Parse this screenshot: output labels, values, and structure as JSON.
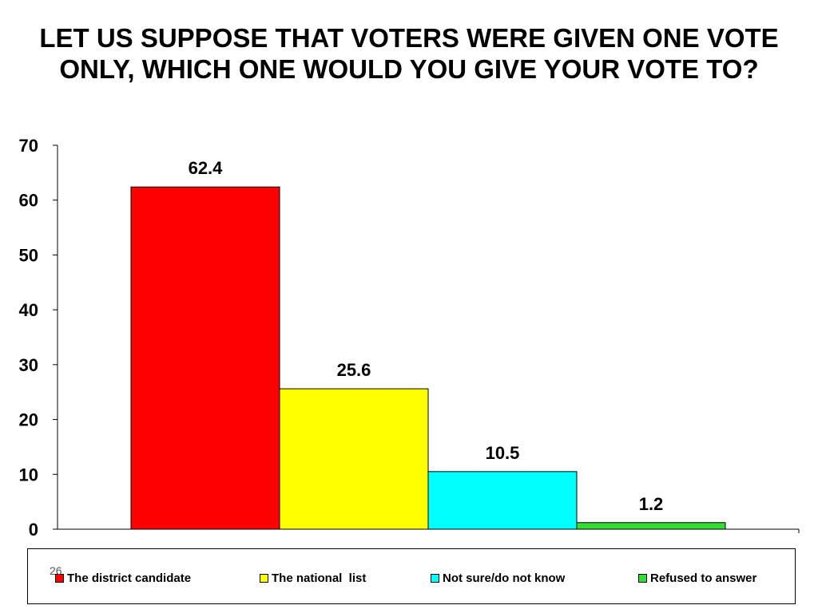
{
  "chart_data": {
    "type": "bar",
    "title": "LET US SUPPOSE THAT VOTERS WERE GIVEN ONE VOTE ONLY, WHICH ONE WOULD YOU GIVE YOUR VOTE TO?",
    "categories": [
      "The district candidate",
      "The national  list",
      "Not sure/do not know",
      "Refused to answer"
    ],
    "values": [
      62.4,
      25.6,
      10.5,
      1.2
    ],
    "data_labels": [
      "62.4",
      "25.6",
      "10.5",
      "1.2"
    ],
    "colors": [
      "#ff0000",
      "#ffff00",
      "#00ffff",
      "#33dd33"
    ],
    "ylim": [
      0,
      70
    ],
    "yticks": [
      0,
      10,
      20,
      30,
      40,
      50,
      60,
      70
    ],
    "grid": false,
    "legend_position": "bottom",
    "xlabel": "",
    "ylabel": ""
  },
  "slide": {
    "page_number": "26"
  }
}
